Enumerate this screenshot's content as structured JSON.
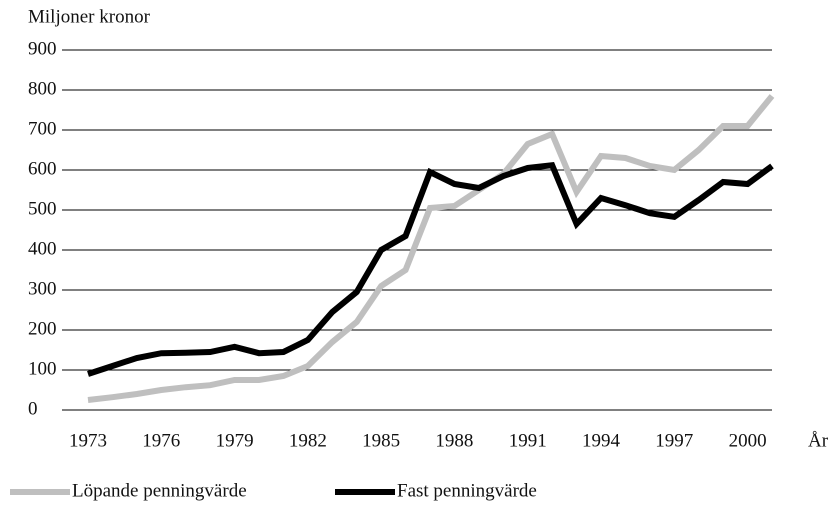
{
  "chart_data": {
    "type": "line",
    "y_label": "Miljoner kronor",
    "x_label": "År",
    "x": [
      1973,
      1974,
      1975,
      1976,
      1977,
      1978,
      1979,
      1980,
      1981,
      1982,
      1983,
      1984,
      1985,
      1986,
      1987,
      1988,
      1989,
      1990,
      1991,
      1992,
      1993,
      1994,
      1995,
      1996,
      1997,
      1998,
      1999,
      2000,
      2001
    ],
    "series": [
      {
        "name": "Löpande penningvärde",
        "color": "#bfbfbf",
        "values": [
          25,
          32,
          40,
          50,
          57,
          62,
          75,
          75,
          85,
          110,
          170,
          220,
          310,
          350,
          505,
          510,
          550,
          590,
          665,
          690,
          545,
          635,
          630,
          610,
          600,
          650,
          710,
          710,
          785
        ]
      },
      {
        "name": "Fast penningvärde",
        "color": "#000000",
        "values": [
          90,
          110,
          130,
          142,
          143,
          145,
          158,
          142,
          145,
          175,
          245,
          295,
          400,
          435,
          595,
          565,
          555,
          585,
          605,
          612,
          465,
          530,
          512,
          492,
          483,
          525,
          570,
          565,
          610
        ]
      }
    ],
    "xlim": [
      1973,
      2001
    ],
    "xticks": [
      1973,
      1976,
      1979,
      1982,
      1985,
      1988,
      1991,
      1994,
      1997,
      2000
    ],
    "ylim": [
      0,
      900
    ],
    "yticks": [
      0,
      100,
      200,
      300,
      400,
      500,
      600,
      700,
      800,
      900
    ],
    "grid": true,
    "legend": "bottom-left"
  }
}
